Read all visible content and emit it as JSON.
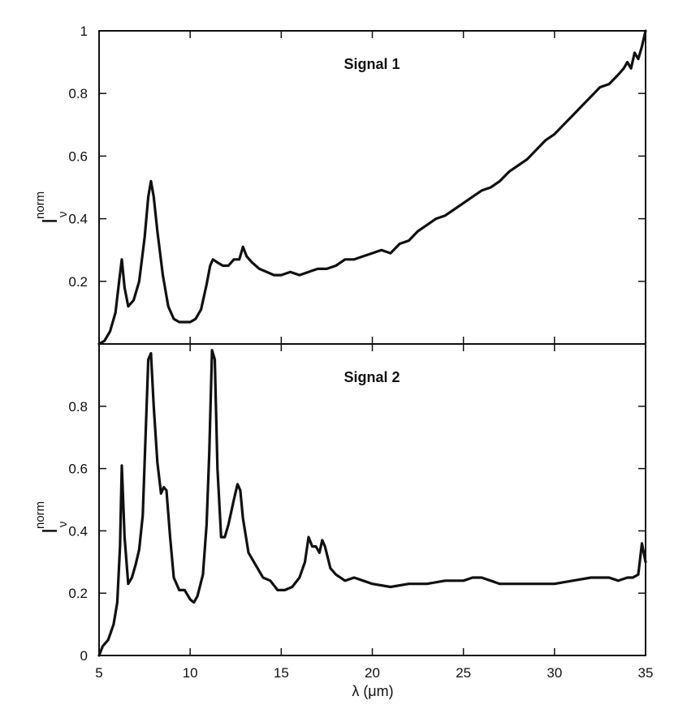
{
  "chart_data": [
    {
      "type": "line",
      "title": "Signal 1",
      "xlabel": "",
      "ylabel": {
        "main": "I",
        "superscript": "norm",
        "subscript": "ν"
      },
      "xlim": [
        5,
        35
      ],
      "ylim": [
        0,
        1
      ],
      "y_ticks": [
        {
          "v": 0.2,
          "label": "0.2"
        },
        {
          "v": 0.4,
          "label": "0.4"
        },
        {
          "v": 0.6,
          "label": "0.6"
        },
        {
          "v": 0.8,
          "label": "0.8"
        },
        {
          "v": 1,
          "label": "1"
        }
      ],
      "grid": false,
      "series": [
        {
          "x": [
            5.0,
            5.3,
            5.6,
            5.9,
            6.1,
            6.25,
            6.4,
            6.6,
            6.9,
            7.2,
            7.5,
            7.7,
            7.85,
            8.0,
            8.2,
            8.5,
            8.8,
            9.1,
            9.4,
            9.7,
            10.0,
            10.3,
            10.6,
            10.9,
            11.1,
            11.25,
            11.5,
            11.8,
            12.1,
            12.4,
            12.7,
            12.9,
            13.1,
            13.4,
            13.8,
            14.2,
            14.6,
            15.0,
            15.5,
            16.0,
            16.5,
            17.0,
            17.5,
            18.0,
            18.5,
            19.0,
            19.5,
            20.0,
            20.5,
            21.0,
            21.5,
            22.0,
            22.5,
            23.0,
            23.5,
            24.0,
            24.5,
            25.0,
            25.5,
            26.0,
            26.5,
            27.0,
            27.5,
            28.0,
            28.5,
            29.0,
            29.5,
            30.0,
            30.5,
            31.0,
            31.5,
            32.0,
            32.5,
            33.0,
            33.5,
            33.8,
            34.0,
            34.2,
            34.4,
            34.6,
            34.8,
            35.0
          ],
          "y": [
            0.0,
            0.01,
            0.04,
            0.1,
            0.2,
            0.27,
            0.18,
            0.12,
            0.14,
            0.2,
            0.34,
            0.47,
            0.52,
            0.47,
            0.36,
            0.22,
            0.12,
            0.08,
            0.07,
            0.07,
            0.07,
            0.08,
            0.11,
            0.19,
            0.25,
            0.27,
            0.26,
            0.25,
            0.25,
            0.27,
            0.27,
            0.31,
            0.28,
            0.26,
            0.24,
            0.23,
            0.22,
            0.22,
            0.23,
            0.22,
            0.23,
            0.24,
            0.24,
            0.25,
            0.27,
            0.27,
            0.28,
            0.29,
            0.3,
            0.29,
            0.32,
            0.33,
            0.36,
            0.38,
            0.4,
            0.41,
            0.43,
            0.45,
            0.47,
            0.49,
            0.5,
            0.52,
            0.55,
            0.57,
            0.59,
            0.62,
            0.65,
            0.67,
            0.7,
            0.73,
            0.76,
            0.79,
            0.82,
            0.83,
            0.86,
            0.88,
            0.9,
            0.88,
            0.93,
            0.91,
            0.95,
            1.0
          ]
        }
      ]
    },
    {
      "type": "line",
      "title": "Signal 2",
      "xlabel": "λ (μm)",
      "ylabel": {
        "main": "I",
        "superscript": "norm",
        "subscript": "ν"
      },
      "xlim": [
        5,
        35
      ],
      "ylim": [
        0,
        1
      ],
      "x_ticks": [
        {
          "v": 5,
          "label": "5"
        },
        {
          "v": 10,
          "label": "10"
        },
        {
          "v": 15,
          "label": "15"
        },
        {
          "v": 20,
          "label": "20"
        },
        {
          "v": 25,
          "label": "25"
        },
        {
          "v": 30,
          "label": "30"
        },
        {
          "v": 35,
          "label": "35"
        }
      ],
      "y_ticks": [
        {
          "v": 0,
          "label": "0"
        },
        {
          "v": 0.2,
          "label": "0.2"
        },
        {
          "v": 0.4,
          "label": "0.4"
        },
        {
          "v": 0.6,
          "label": "0.6"
        },
        {
          "v": 0.8,
          "label": "0.8"
        }
      ],
      "grid": false,
      "series": [
        {
          "x": [
            5.0,
            5.2,
            5.5,
            5.8,
            6.0,
            6.15,
            6.25,
            6.4,
            6.6,
            6.8,
            7.0,
            7.2,
            7.4,
            7.55,
            7.7,
            7.85,
            8.0,
            8.2,
            8.4,
            8.55,
            8.7,
            8.9,
            9.1,
            9.4,
            9.7,
            10.0,
            10.2,
            10.4,
            10.7,
            10.9,
            11.05,
            11.2,
            11.35,
            11.5,
            11.7,
            11.9,
            12.1,
            12.4,
            12.6,
            12.75,
            12.9,
            13.2,
            13.6,
            14.0,
            14.4,
            14.8,
            15.2,
            15.6,
            16.0,
            16.3,
            16.5,
            16.7,
            16.9,
            17.1,
            17.25,
            17.4,
            17.7,
            18.0,
            18.5,
            19.0,
            19.5,
            20.0,
            21.0,
            22.0,
            23.0,
            24.0,
            25.0,
            25.5,
            26.0,
            26.5,
            27.0,
            28.0,
            29.0,
            30.0,
            31.0,
            32.0,
            33.0,
            33.5,
            34.0,
            34.3,
            34.6,
            34.8,
            35.0
          ],
          "y": [
            0.0,
            0.03,
            0.05,
            0.1,
            0.17,
            0.35,
            0.61,
            0.38,
            0.23,
            0.25,
            0.29,
            0.34,
            0.45,
            0.7,
            0.95,
            0.97,
            0.8,
            0.62,
            0.52,
            0.54,
            0.53,
            0.38,
            0.25,
            0.21,
            0.21,
            0.18,
            0.17,
            0.19,
            0.26,
            0.42,
            0.65,
            0.98,
            0.95,
            0.6,
            0.38,
            0.38,
            0.42,
            0.5,
            0.55,
            0.53,
            0.44,
            0.33,
            0.29,
            0.25,
            0.24,
            0.21,
            0.21,
            0.22,
            0.25,
            0.3,
            0.38,
            0.35,
            0.35,
            0.33,
            0.37,
            0.35,
            0.28,
            0.26,
            0.24,
            0.25,
            0.24,
            0.23,
            0.22,
            0.23,
            0.23,
            0.24,
            0.24,
            0.25,
            0.25,
            0.24,
            0.23,
            0.23,
            0.23,
            0.23,
            0.24,
            0.25,
            0.25,
            0.24,
            0.25,
            0.25,
            0.26,
            0.36,
            0.3
          ]
        }
      ]
    }
  ]
}
